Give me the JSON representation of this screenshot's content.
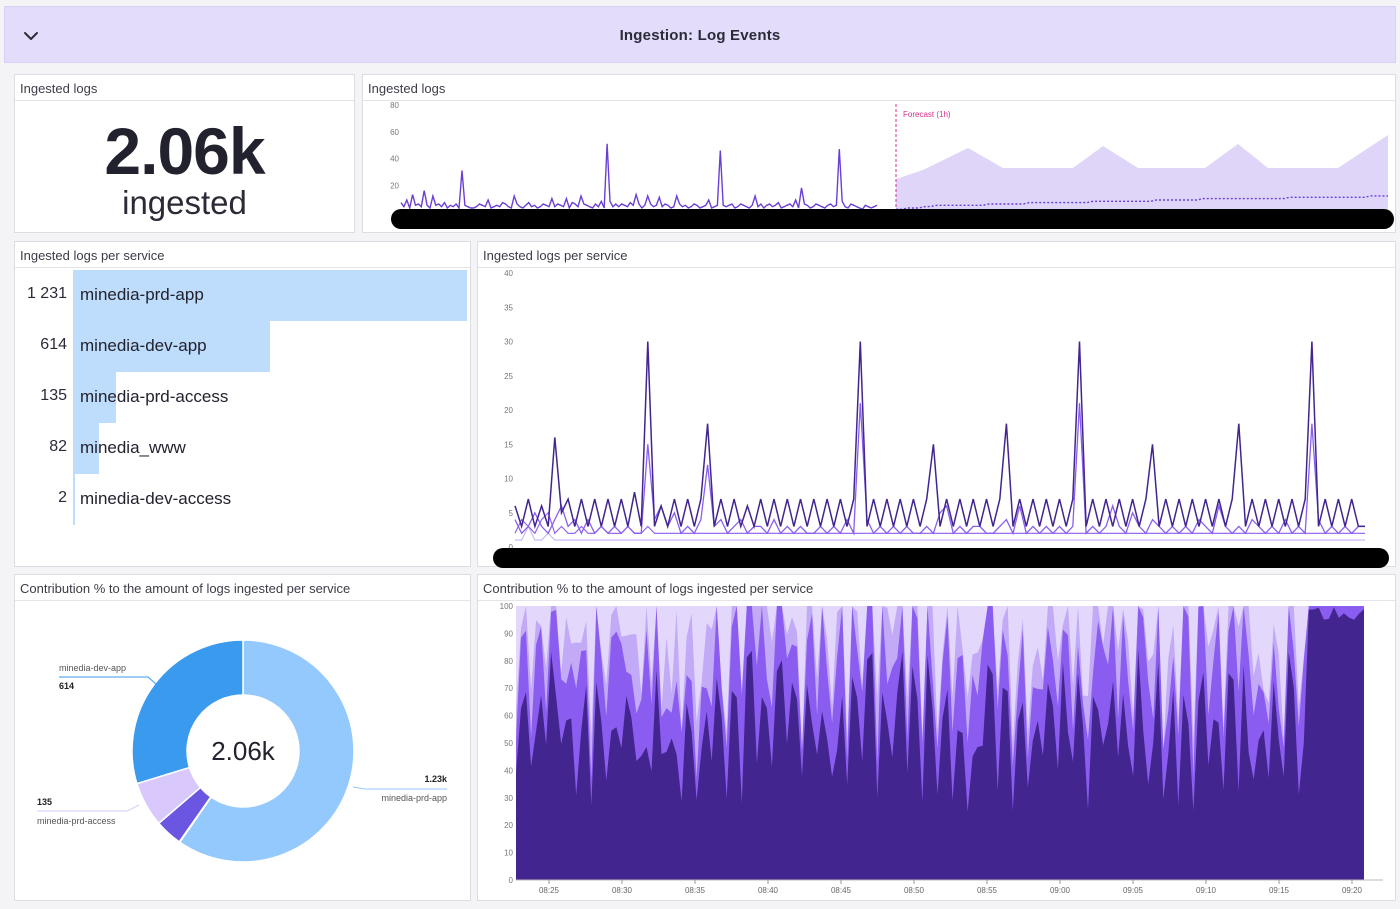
{
  "group": {
    "title": "Ingestion: Log Events",
    "collapse_icon": "chevron-down-icon"
  },
  "widgets": {
    "query_value": {
      "title": "Ingested logs",
      "value": "2.06k",
      "unit": "ingested"
    },
    "forecast": {
      "title": "Ingested logs",
      "forecast_label": "Forecast (1h)"
    },
    "toplist": {
      "title": "Ingested logs per service",
      "items": [
        {
          "value": "1 231",
          "label": "minedia-prd-app",
          "fraction": 1.0
        },
        {
          "value": "614",
          "label": "minedia-dev-app",
          "fraction": 0.499
        },
        {
          "value": "135",
          "label": "minedia-prd-access",
          "fraction": 0.11
        },
        {
          "value": "82",
          "label": "minedia_www",
          "fraction": 0.067
        },
        {
          "value": "2",
          "label": "minedia-dev-access",
          "fraction": 0.002
        }
      ]
    },
    "timeseries": {
      "title": "Ingested logs per service"
    },
    "pie": {
      "title": "Contribution % to the amount of logs ingested per service",
      "center_value": "2.06k",
      "labels": [
        {
          "service": "minedia-dev-app",
          "value": "614"
        },
        {
          "service": "minedia-prd-app",
          "value": "1.23k"
        },
        {
          "service": "minedia-prd-access",
          "value": "135"
        }
      ]
    },
    "area": {
      "title": "Contribution % to the amount of logs ingested per service"
    }
  },
  "colors": {
    "header_bg": "#e3dcfb",
    "bar": "#bedcfb",
    "pie_prd_app": "#93c9fc",
    "pie_dev_app": "#3a9aee",
    "pie_prd_access": "#d9c8fb",
    "pie_www": "#6a56e0",
    "series_dark": "#42258f",
    "series_mid": "#8a5df0",
    "series_light": "#c7b3f6",
    "forecast_line": "#d6328a"
  },
  "chart_data": [
    {
      "type": "line",
      "ylim": [
        0,
        80
      ],
      "yticks": [
        "80",
        "60",
        "40",
        "20"
      ],
      "series": [
        {
          "values": [
            7,
            4,
            9,
            3,
            13,
            5,
            6,
            4,
            16,
            5,
            3,
            12,
            5,
            6,
            4,
            7,
            3,
            5,
            4,
            6,
            3,
            31,
            5,
            4,
            3,
            3,
            4,
            6,
            5,
            4,
            9,
            3,
            4,
            5,
            4,
            7,
            6,
            4,
            3,
            12,
            6,
            4,
            3,
            5,
            7,
            4,
            5,
            3,
            4,
            6,
            5,
            4,
            10,
            4,
            6,
            5,
            4,
            10,
            3,
            7,
            6,
            4,
            12,
            6,
            5,
            4,
            3,
            6,
            4,
            8,
            3,
            51,
            8,
            4,
            6,
            4,
            6,
            5,
            4,
            7,
            5,
            13,
            6,
            3,
            5,
            12,
            6,
            4,
            5,
            11,
            4,
            6,
            5,
            3,
            4,
            12,
            6,
            4,
            5,
            3,
            4,
            6,
            5,
            3,
            4,
            5,
            9,
            3,
            4,
            5,
            46,
            5,
            4,
            5,
            6,
            3,
            4,
            6,
            5,
            4,
            3,
            5,
            12,
            4,
            6,
            3,
            5,
            6,
            4,
            5,
            7,
            3,
            4,
            5,
            6,
            4,
            9,
            3,
            18,
            6,
            5,
            3,
            4,
            6,
            5,
            4,
            3,
            5,
            6,
            4,
            5,
            47,
            8,
            4,
            3,
            6,
            5,
            4,
            3,
            2,
            5,
            4,
            3,
            4,
            5
          ]
        },
        {
          "values": [
            5,
            5,
            6,
            6,
            6,
            7,
            7,
            8,
            8,
            8,
            8,
            8,
            8,
            8,
            8,
            8,
            9,
            9,
            9,
            9,
            9,
            9,
            9,
            10,
            10,
            10,
            10,
            10,
            10,
            10,
            10,
            10,
            10,
            10,
            11,
            11,
            11,
            11,
            11,
            11,
            11,
            11,
            11,
            11,
            11,
            12,
            12,
            12,
            12,
            12,
            12,
            12,
            12,
            13,
            13,
            13,
            13,
            13,
            13,
            13,
            13,
            13,
            13,
            13,
            13,
            13,
            13,
            13,
            14,
            14,
            14,
            14,
            14,
            14,
            14,
            14,
            14,
            14,
            14,
            14,
            14,
            14,
            15,
            15,
            15,
            15
          ]
        }
      ]
    },
    {
      "type": "line",
      "ylim": [
        0,
        40
      ],
      "yticks": [
        "40",
        "35",
        "30",
        "25",
        "20",
        "15",
        "10",
        "5",
        "0"
      ],
      "series": [
        {
          "values": [
            6,
            3,
            7,
            3,
            6,
            3,
            16,
            5,
            7,
            3,
            7,
            3,
            7,
            3,
            7,
            3,
            7,
            3,
            8,
            3,
            30,
            3,
            6,
            3,
            7,
            3,
            7,
            3,
            7,
            18,
            3,
            7,
            3,
            7,
            3,
            6,
            3,
            7,
            3,
            7,
            3,
            7,
            3,
            7,
            3,
            7,
            3,
            7,
            3,
            7,
            3,
            7,
            30,
            3,
            7,
            3,
            7,
            3,
            7,
            3,
            7,
            3,
            7,
            15,
            3,
            7,
            3,
            7,
            3,
            7,
            3,
            7,
            3,
            7,
            18,
            3,
            7,
            3,
            7,
            3,
            7,
            3,
            7,
            3,
            7,
            30,
            3,
            7,
            3,
            7,
            3,
            7,
            3,
            7,
            3,
            7,
            15,
            3,
            7,
            3,
            7,
            3,
            7,
            3,
            7,
            3,
            7,
            3,
            7,
            18,
            3,
            7,
            3,
            7,
            3,
            7,
            3,
            7,
            3,
            7,
            30,
            3,
            7,
            3,
            7,
            3,
            7,
            3,
            3
          ]
        },
        {
          "values": [
            4,
            2,
            3,
            5,
            3,
            2,
            4,
            6,
            3,
            4,
            2,
            4,
            2,
            3,
            2,
            3,
            2,
            3,
            2,
            2,
            15,
            4,
            6,
            3,
            5,
            2,
            3,
            2,
            4,
            12,
            3,
            4,
            2,
            3,
            4,
            2,
            3,
            3,
            2,
            4,
            2,
            3,
            2,
            3,
            2,
            2,
            3,
            2,
            3,
            2,
            4,
            2,
            21,
            4,
            2,
            3,
            2,
            3,
            2,
            3,
            2,
            2,
            3,
            2,
            5,
            6,
            2,
            3,
            2,
            3,
            3,
            2,
            2,
            3,
            4,
            2,
            6,
            2,
            3,
            2,
            3,
            2,
            3,
            2,
            3,
            21,
            2,
            3,
            2,
            3,
            6,
            3,
            2,
            5,
            3,
            2,
            4,
            3,
            2,
            3,
            2,
            3,
            2,
            4,
            3,
            2,
            6,
            3,
            2,
            3,
            2,
            4,
            3,
            2,
            3,
            2,
            4,
            2,
            3,
            2,
            18,
            4,
            2,
            3,
            2,
            3,
            2,
            3,
            3
          ]
        },
        {
          "values": [
            2,
            4,
            3,
            2,
            4,
            5,
            2,
            3,
            2,
            2,
            3,
            2,
            2,
            3,
            2,
            2,
            2,
            3,
            2,
            2,
            3,
            2,
            2,
            2,
            2,
            2,
            2,
            2,
            2,
            2,
            2,
            2,
            2,
            2,
            2,
            2,
            2,
            2,
            2,
            2,
            2,
            2,
            2,
            2,
            2,
            2,
            2,
            2,
            2,
            2,
            2,
            2,
            2,
            2,
            2,
            2,
            2,
            2,
            2,
            2,
            2,
            2,
            2,
            2,
            2,
            2,
            2,
            2,
            2,
            2,
            2,
            2,
            2,
            2,
            2,
            2,
            2,
            2,
            2,
            2,
            2,
            2,
            2,
            2,
            2,
            2,
            2,
            2,
            2,
            2,
            2,
            2,
            2,
            2,
            2,
            2,
            2,
            2,
            2,
            2,
            2,
            2,
            2,
            2,
            2,
            2,
            2,
            2,
            2,
            2,
            2,
            2,
            2,
            2,
            2,
            2,
            2,
            2,
            2,
            2,
            2,
            2,
            2,
            2,
            2,
            2,
            2,
            2,
            2
          ]
        },
        {
          "values": [
            1,
            1,
            3,
            1,
            1,
            2,
            1,
            1,
            1,
            1,
            1,
            1,
            1,
            1,
            1,
            1,
            1,
            1,
            1,
            1,
            1,
            1,
            1,
            1,
            1,
            1,
            1,
            1,
            1,
            1,
            1,
            1,
            1,
            1,
            1,
            1,
            1,
            1,
            1,
            1,
            1,
            1,
            1,
            1,
            1,
            1,
            1,
            1,
            1,
            1,
            1,
            1,
            1,
            1,
            1,
            1,
            1,
            1,
            1,
            1,
            1,
            1,
            1,
            1,
            1,
            1,
            1,
            1,
            1,
            1,
            1,
            1,
            1,
            1,
            1,
            1,
            1,
            1,
            1,
            1,
            1,
            1,
            1,
            1,
            1,
            1,
            1,
            1,
            1,
            1,
            1,
            1,
            1,
            1,
            1,
            1,
            1,
            1,
            1,
            1,
            1,
            1,
            1,
            1,
            1,
            1,
            1,
            1,
            1,
            1,
            1,
            1,
            1,
            1,
            1,
            1,
            1,
            1,
            1,
            1,
            1,
            1,
            1,
            1,
            1,
            1,
            1,
            1,
            1
          ]
        }
      ]
    },
    {
      "type": "pie",
      "categories": [
        "minedia-prd-app",
        "minedia-dev-app",
        "minedia-prd-access",
        "minedia_www",
        "minedia-dev-access"
      ],
      "values": [
        1231,
        614,
        135,
        82,
        2
      ]
    },
    {
      "type": "area",
      "ylim": [
        0,
        100
      ],
      "yticks": [
        "100",
        "90",
        "80",
        "70",
        "60",
        "50",
        "40",
        "30",
        "20",
        "10",
        "0"
      ],
      "xticks": [
        "08:25",
        "08:30",
        "08:35",
        "08:40",
        "08:45",
        "08:50",
        "08:55",
        "09:00",
        "09:05",
        "09:10",
        "09:15",
        "09:20"
      ]
    }
  ]
}
